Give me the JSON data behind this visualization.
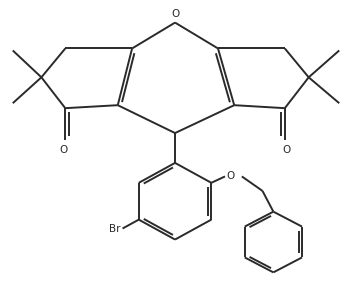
{
  "line_color": "#2a2a2a",
  "line_width": 1.4,
  "font_size": 7.5,
  "xlim": [
    0,
    10
  ],
  "ylim": [
    0,
    8.5
  ],
  "figsize": [
    3.52,
    2.87
  ],
  "dpi": 100
}
